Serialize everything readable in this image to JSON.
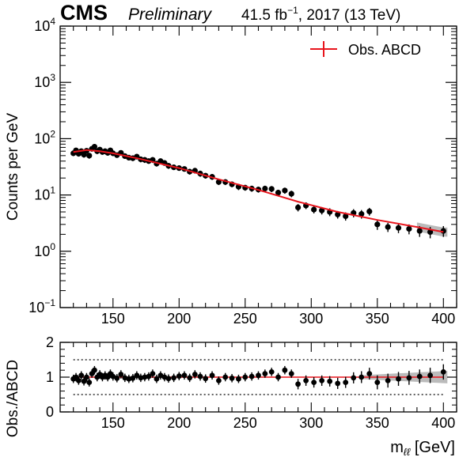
{
  "header": {
    "experiment": "CMS",
    "status": "Preliminary",
    "lumi": "41.5 fb",
    "lumi_exp": "−1",
    "lumi_tail": ", 2017 (13 TeV)"
  },
  "chart_data": [
    {
      "type": "scatter",
      "ylabel": "Counts per GeV",
      "yscale": "log",
      "ylim": [
        0.1,
        10000
      ],
      "xlim": [
        110,
        410
      ],
      "xticks": [
        "150",
        "200",
        "250",
        "300",
        "350",
        "400"
      ],
      "yticks": [
        {
          "base": "10",
          "exp": "4"
        },
        {
          "base": "10",
          "exp": "3"
        },
        {
          "base": "10",
          "exp": "2"
        },
        {
          "base": "10",
          "exp": "1"
        },
        {
          "base": "10",
          "exp": "0"
        },
        {
          "base": "10",
          "exp": "−1"
        }
      ],
      "legend": {
        "label": "Obs. ABCD",
        "placement": "top-right",
        "color": "#e8141c"
      },
      "colors": {
        "data": "#000000",
        "fit": "#e8141c",
        "band": "#aaaaaa"
      },
      "series": [
        {
          "type": "line",
          "x": [
            120,
            130,
            140,
            150,
            170,
            200,
            230,
            260,
            290,
            320,
            350,
            380,
            400
          ],
          "y": [
            58,
            63,
            60,
            55,
            44,
            30,
            19,
            12.3,
            7.6,
            5.0,
            3.6,
            2.7,
            2.2
          ]
        },
        {
          "type": "points",
          "x": [
            120,
            122,
            124,
            126,
            128,
            130,
            132,
            134,
            136,
            138,
            140,
            142,
            144,
            146,
            148,
            150,
            153,
            156,
            159,
            162,
            165,
            168,
            171,
            174,
            177,
            180,
            183,
            186,
            189,
            192,
            196,
            200,
            204,
            208,
            212,
            216,
            220,
            225,
            230,
            235,
            240,
            245,
            250,
            255,
            260,
            265,
            270,
            275,
            280,
            285,
            290,
            296,
            302,
            308,
            314,
            320,
            326,
            332,
            338,
            344,
            350,
            358,
            366,
            374,
            382,
            390,
            400
          ],
          "y": [
            55,
            62,
            54,
            60,
            52,
            61,
            50,
            66,
            72,
            60,
            64,
            58,
            60,
            56,
            62,
            55,
            51,
            56,
            49,
            46,
            45,
            48,
            43,
            42,
            40,
            42,
            36,
            40,
            37,
            33,
            31,
            30,
            29,
            26,
            27,
            24,
            22,
            21,
            17,
            17,
            15.5,
            14,
            13.5,
            13,
            12.5,
            13,
            12.8,
            11,
            12,
            10.5,
            6.0,
            6.5,
            5.5,
            5.3,
            5.0,
            4.5,
            4.2,
            4.8,
            4.6,
            5.1,
            3.0,
            2.7,
            2.6,
            2.5,
            2.3,
            2.2,
            2.3
          ],
          "yerr": [
            6,
            7,
            6,
            7,
            6,
            7,
            6,
            7,
            8,
            7,
            7,
            6,
            7,
            6,
            7,
            6,
            5,
            6,
            5,
            5,
            5,
            5,
            5,
            5,
            4,
            5,
            4,
            4,
            4,
            4,
            3,
            3,
            3,
            3,
            3,
            3,
            2.5,
            2.5,
            2,
            2,
            1.8,
            1.8,
            1.6,
            1.6,
            1.5,
            1.6,
            1.6,
            1.4,
            1.5,
            1.4,
            0.9,
            0.9,
            0.8,
            0.8,
            0.8,
            0.7,
            0.7,
            0.8,
            0.8,
            0.8,
            0.6,
            0.5,
            0.5,
            0.5,
            0.5,
            0.5,
            0.5
          ]
        }
      ]
    },
    {
      "type": "scatter",
      "ylabel": "Obs./ABCD",
      "xlabel": "m",
      "xlabel_sub": "ℓℓ",
      "xlabel_unit": " [GeV]",
      "ylim": [
        0,
        2
      ],
      "xlim": [
        110,
        410
      ],
      "xticks": [
        "150",
        "200",
        "250",
        "300",
        "350",
        "400"
      ],
      "yticks": [
        "2",
        "1",
        "0"
      ],
      "reference_lines": [
        0.5,
        1.5
      ],
      "series": [
        {
          "type": "points",
          "x": [
            120,
            122,
            124,
            126,
            128,
            130,
            132,
            134,
            136,
            138,
            140,
            142,
            144,
            146,
            148,
            150,
            153,
            156,
            159,
            162,
            165,
            168,
            171,
            174,
            177,
            180,
            183,
            186,
            189,
            192,
            196,
            200,
            204,
            208,
            212,
            216,
            220,
            225,
            230,
            235,
            240,
            245,
            250,
            255,
            260,
            265,
            270,
            275,
            280,
            285,
            290,
            296,
            302,
            308,
            314,
            320,
            326,
            332,
            338,
            344,
            350,
            358,
            366,
            374,
            382,
            390,
            400
          ],
          "y": [
            0.95,
            1.0,
            0.9,
            1.05,
            0.88,
            1.0,
            0.85,
            1.1,
            1.2,
            1.0,
            1.08,
            1.0,
            1.05,
            1.0,
            1.1,
            1.02,
            0.97,
            1.08,
            0.98,
            0.95,
            0.97,
            1.05,
            0.98,
            1.0,
            1.02,
            1.1,
            0.95,
            1.05,
            1.0,
            0.96,
            0.98,
            1.03,
            1.05,
            0.98,
            1.08,
            1.02,
            0.96,
            1.05,
            0.9,
            1.0,
            0.97,
            0.95,
            1.0,
            1.02,
            1.05,
            1.1,
            1.15,
            1.0,
            1.2,
            1.1,
            0.8,
            0.9,
            0.85,
            0.9,
            0.88,
            0.82,
            0.85,
            0.98,
            1.0,
            1.1,
            0.85,
            0.9,
            0.95,
            0.98,
            1.02,
            1.05,
            1.15
          ],
          "yerr": [
            0.12,
            0.12,
            0.12,
            0.12,
            0.12,
            0.12,
            0.12,
            0.12,
            0.12,
            0.12,
            0.12,
            0.12,
            0.12,
            0.12,
            0.12,
            0.12,
            0.12,
            0.12,
            0.12,
            0.12,
            0.12,
            0.12,
            0.12,
            0.12,
            0.12,
            0.12,
            0.12,
            0.12,
            0.12,
            0.12,
            0.12,
            0.12,
            0.12,
            0.12,
            0.12,
            0.12,
            0.12,
            0.12,
            0.12,
            0.12,
            0.12,
            0.12,
            0.12,
            0.12,
            0.12,
            0.12,
            0.12,
            0.12,
            0.12,
            0.12,
            0.15,
            0.15,
            0.15,
            0.15,
            0.15,
            0.16,
            0.16,
            0.16,
            0.17,
            0.17,
            0.2,
            0.2,
            0.2,
            0.2,
            0.2,
            0.22,
            0.22
          ]
        }
      ]
    }
  ]
}
